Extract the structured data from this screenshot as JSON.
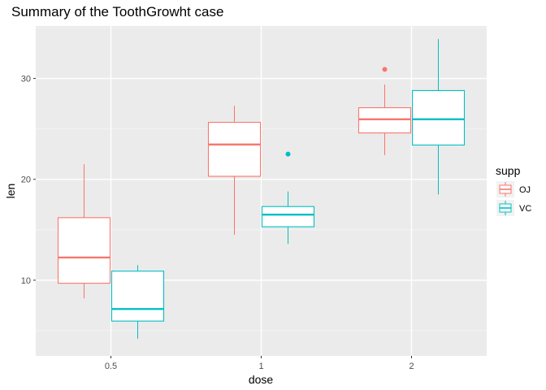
{
  "chart_data": {
    "type": "boxplot",
    "title": "Summary of the ToothGrowht case",
    "xlabel": "dose",
    "ylabel": "len",
    "categories": [
      "0.5",
      "1",
      "2"
    ],
    "yticks": [
      10,
      20,
      30
    ],
    "ylim": [
      2.5,
      35.2
    ],
    "grid": true,
    "legend": {
      "title": "supp",
      "position": "right",
      "entries": [
        "OJ",
        "VC"
      ]
    },
    "series": [
      {
        "name": "OJ",
        "color": "#F8766D",
        "boxes": [
          {
            "category": "0.5",
            "lower_whisker": 8.2,
            "q1": 9.7,
            "median": 12.25,
            "q3": 16.2,
            "upper_whisker": 21.5,
            "outliers": []
          },
          {
            "category": "1",
            "lower_whisker": 14.5,
            "q1": 20.3,
            "median": 23.45,
            "q3": 25.65,
            "upper_whisker": 27.3,
            "outliers": []
          },
          {
            "category": "2",
            "lower_whisker": 22.4,
            "q1": 24.6,
            "median": 25.95,
            "q3": 27.1,
            "upper_whisker": 29.4,
            "outliers": [
              30.9
            ]
          }
        ]
      },
      {
        "name": "VC",
        "color": "#00BFC4",
        "boxes": [
          {
            "category": "0.5",
            "lower_whisker": 4.2,
            "q1": 5.95,
            "median": 7.15,
            "q3": 10.9,
            "upper_whisker": 11.5,
            "outliers": []
          },
          {
            "category": "1",
            "lower_whisker": 13.6,
            "q1": 15.3,
            "median": 16.5,
            "q3": 17.3,
            "upper_whisker": 18.8,
            "outliers": [
              22.5
            ]
          },
          {
            "category": "2",
            "lower_whisker": 18.5,
            "q1": 23.4,
            "median": 25.95,
            "q3": 28.8,
            "upper_whisker": 33.9,
            "outliers": []
          }
        ]
      }
    ]
  }
}
